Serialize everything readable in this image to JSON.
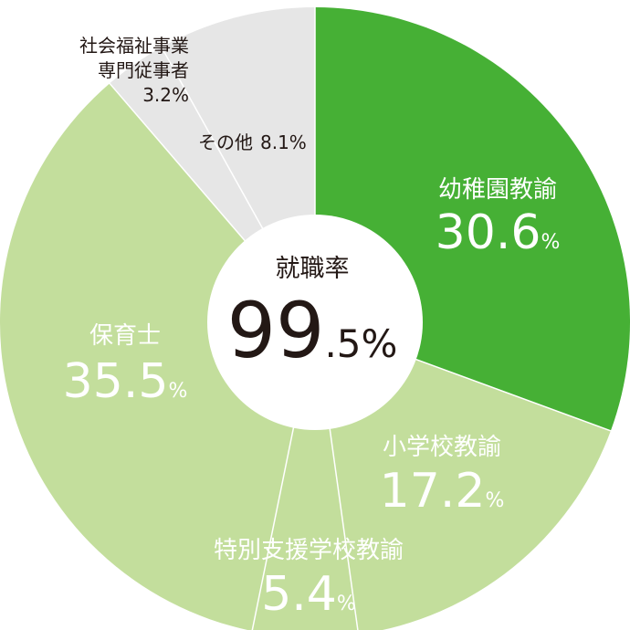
{
  "chart_data": {
    "type": "pie",
    "style": "donut",
    "center_title": "就職率",
    "center_value_main": "99",
    "center_value_sub": ".5%",
    "slices": [
      {
        "label": "幼稚園教諭",
        "value": 30.6,
        "value_main": "30.6",
        "unit": "%",
        "color": "#46b035"
      },
      {
        "label": "小学校教諭",
        "value": 17.2,
        "value_main": "17.2",
        "unit": "%",
        "color": "#c3de9c"
      },
      {
        "label": "特別支援学校教諭",
        "value": 5.4,
        "value_main": "5.4",
        "unit": "%",
        "color": "#c3de9c"
      },
      {
        "label": "保育士",
        "value": 35.5,
        "value_main": "35.5",
        "unit": "%",
        "color": "#c3de9c"
      },
      {
        "label": "社会福祉事業専門従事者",
        "label_lines": [
          "社会福祉事業",
          "専門従事者"
        ],
        "value_text": "3.2%",
        "value": 3.2,
        "color": "#e6e6e6"
      },
      {
        "label": "その他",
        "value_text": "8.1%",
        "value": 8.1,
        "color": "#e6e6e6"
      }
    ]
  }
}
